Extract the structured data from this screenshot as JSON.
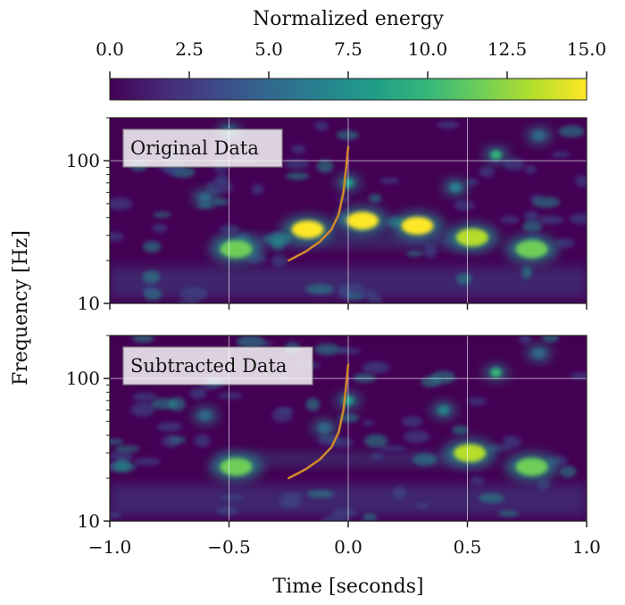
{
  "chart_data": {
    "type": "heatmap",
    "colorbar": {
      "label": "Normalized energy",
      "range": [
        0,
        15
      ],
      "ticks": [
        "0.0",
        "2.5",
        "5.0",
        "7.5",
        "10.0",
        "12.5",
        "15.0"
      ],
      "tick_values": [
        0,
        2.5,
        5,
        7.5,
        10,
        12.5,
        15
      ],
      "colormap": [
        "#440154",
        "#482878",
        "#3e4989",
        "#31688e",
        "#26828e",
        "#1f9e89",
        "#35b779",
        "#6ece58",
        "#b5de2b",
        "#fde725"
      ]
    },
    "xlabel": "Time [seconds]",
    "ylabel": "Frequency [Hz]",
    "xlim": [
      -1.0,
      1.0
    ],
    "ylim": [
      10,
      200
    ],
    "yscale": "log",
    "x_ticks": [
      "−1.0",
      "−0.5",
      "0.0",
      "0.5",
      "1.0"
    ],
    "x_tick_values": [
      -1.0,
      -0.5,
      0.0,
      0.5,
      1.0
    ],
    "y_ticks": [
      "10",
      "100"
    ],
    "y_tick_values": [
      10,
      100
    ],
    "grid": true,
    "track_color": "#d18a2a",
    "track": {
      "t": [
        -0.25,
        -0.18,
        -0.12,
        -0.07,
        -0.04,
        -0.02,
        -0.01,
        0.0
      ],
      "f": [
        20,
        23,
        27,
        33,
        42,
        60,
        85,
        125
      ]
    },
    "panels": [
      {
        "title": "Original Data",
        "blobs": [
          {
            "t": -0.47,
            "f": 24,
            "e": 12
          },
          {
            "t": -0.17,
            "f": 33,
            "e": 15
          },
          {
            "t": 0.06,
            "f": 38,
            "e": 15
          },
          {
            "t": 0.29,
            "f": 35,
            "e": 15
          },
          {
            "t": 0.52,
            "f": 29,
            "e": 14
          },
          {
            "t": 0.77,
            "f": 24,
            "e": 12
          },
          {
            "t": 0.62,
            "f": 110,
            "e": 10
          },
          {
            "t": 0.0,
            "f": 70,
            "e": 9
          },
          {
            "t": 0.45,
            "f": 65,
            "e": 6
          },
          {
            "t": -0.6,
            "f": 55,
            "e": 5
          },
          {
            "t": -0.5,
            "f": 160,
            "e": 5
          },
          {
            "t": 0.8,
            "f": 150,
            "e": 5
          }
        ]
      },
      {
        "title": "Subtracted Data",
        "blobs": [
          {
            "t": -0.47,
            "f": 24,
            "e": 12
          },
          {
            "t": 0.51,
            "f": 30,
            "e": 14
          },
          {
            "t": 0.77,
            "f": 24,
            "e": 12
          },
          {
            "t": 0.62,
            "f": 110,
            "e": 10
          },
          {
            "t": 0.0,
            "f": 70,
            "e": 9
          },
          {
            "t": 0.4,
            "f": 60,
            "e": 6
          },
          {
            "t": -0.1,
            "f": 45,
            "e": 5
          },
          {
            "t": -0.6,
            "f": 55,
            "e": 5
          },
          {
            "t": 0.8,
            "f": 150,
            "e": 5
          }
        ]
      }
    ]
  }
}
